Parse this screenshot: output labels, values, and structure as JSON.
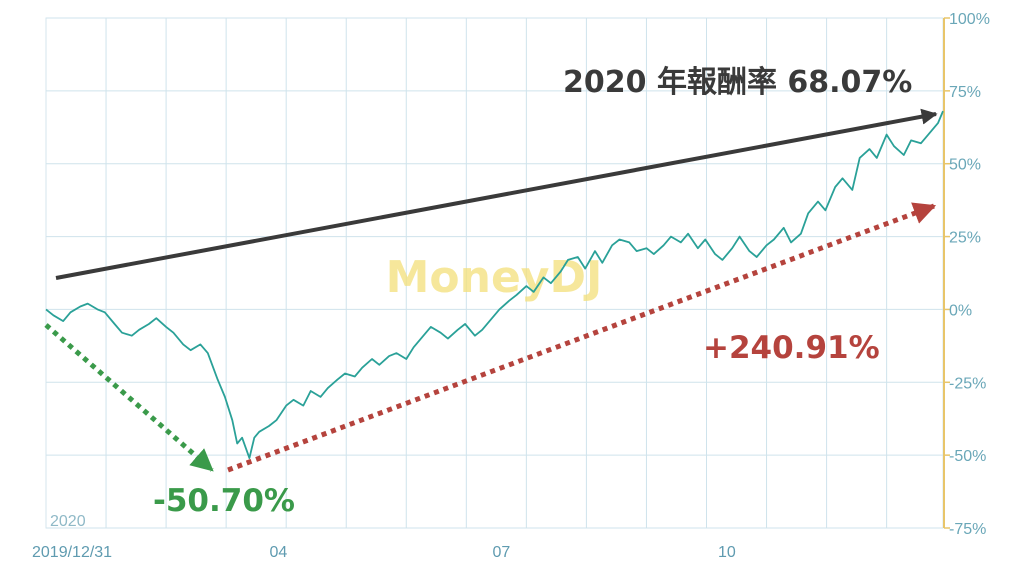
{
  "chart_data": {
    "type": "line",
    "title": "2020 年報酬率 68.07%",
    "watermark": "MoneyDJ",
    "year_label": "2020",
    "x_tick_labels": [
      "2019/12/31",
      "04",
      "07",
      "10"
    ],
    "x_tick_dates": [
      "2019-12-31",
      "2020-04-01",
      "2020-07-01",
      "2020-10-01"
    ],
    "x_range": [
      "2019-12-31",
      "2020-12-31"
    ],
    "y_ticks": [
      100,
      75,
      50,
      25,
      0,
      -25,
      -50,
      -75
    ],
    "y_tick_labels": [
      "100%",
      "75%",
      "50%",
      "25%",
      "0%",
      "-25%",
      "-50%",
      "-75%"
    ],
    "ylim": [
      -75,
      100
    ],
    "y_unit": "%",
    "grid": true,
    "series": [
      {
        "color": "#2aa198",
        "x": [
          "2019-12-31",
          "2020-01-03",
          "2020-01-07",
          "2020-01-10",
          "2020-01-14",
          "2020-01-17",
          "2020-01-21",
          "2020-01-24",
          "2020-01-28",
          "2020-01-31",
          "2020-02-04",
          "2020-02-07",
          "2020-02-11",
          "2020-02-14",
          "2020-02-18",
          "2020-02-21",
          "2020-02-25",
          "2020-02-28",
          "2020-03-03",
          "2020-03-06",
          "2020-03-10",
          "2020-03-13",
          "2020-03-16",
          "2020-03-18",
          "2020-03-20",
          "2020-03-23",
          "2020-03-25",
          "2020-03-27",
          "2020-03-31",
          "2020-04-03",
          "2020-04-07",
          "2020-04-10",
          "2020-04-14",
          "2020-04-17",
          "2020-04-21",
          "2020-04-24",
          "2020-04-28",
          "2020-05-01",
          "2020-05-05",
          "2020-05-08",
          "2020-05-12",
          "2020-05-15",
          "2020-05-19",
          "2020-05-22",
          "2020-05-26",
          "2020-05-29",
          "2020-06-02",
          "2020-06-05",
          "2020-06-09",
          "2020-06-12",
          "2020-06-16",
          "2020-06-19",
          "2020-06-23",
          "2020-06-26",
          "2020-06-30",
          "2020-07-03",
          "2020-07-07",
          "2020-07-10",
          "2020-07-14",
          "2020-07-17",
          "2020-07-21",
          "2020-07-24",
          "2020-07-28",
          "2020-07-31",
          "2020-08-04",
          "2020-08-07",
          "2020-08-11",
          "2020-08-14",
          "2020-08-18",
          "2020-08-21",
          "2020-08-25",
          "2020-08-28",
          "2020-09-01",
          "2020-09-04",
          "2020-09-08",
          "2020-09-11",
          "2020-09-15",
          "2020-09-18",
          "2020-09-22",
          "2020-09-25",
          "2020-09-29",
          "2020-10-02",
          "2020-10-06",
          "2020-10-09",
          "2020-10-13",
          "2020-10-16",
          "2020-10-20",
          "2020-10-23",
          "2020-10-27",
          "2020-10-30",
          "2020-11-03",
          "2020-11-06",
          "2020-11-10",
          "2020-11-13",
          "2020-11-17",
          "2020-11-20",
          "2020-11-24",
          "2020-11-27",
          "2020-12-01",
          "2020-12-04",
          "2020-12-08",
          "2020-12-11",
          "2020-12-15",
          "2020-12-18",
          "2020-12-22",
          "2020-12-25",
          "2020-12-29",
          "2020-12-31"
        ],
        "y": [
          0,
          -2,
          -4,
          -1,
          1,
          2,
          0,
          -1,
          -5,
          -8,
          -9,
          -7,
          -5,
          -3,
          -6,
          -8,
          -12,
          -14,
          -12,
          -15,
          -24,
          -30,
          -38,
          -46,
          -44,
          -51,
          -44,
          -42,
          -40,
          -38,
          -33,
          -31,
          -33,
          -28,
          -30,
          -27,
          -24,
          -22,
          -23,
          -20,
          -17,
          -19,
          -16,
          -15,
          -17,
          -13,
          -9,
          -6,
          -8,
          -10,
          -7,
          -5,
          -9,
          -7,
          -3,
          0,
          3,
          5,
          8,
          6,
          11,
          9,
          13,
          17,
          18,
          14,
          20,
          16,
          22,
          24,
          23,
          20,
          21,
          19,
          22,
          25,
          23,
          26,
          21,
          24,
          19,
          17,
          21,
          25,
          20,
          18,
          22,
          24,
          28,
          23,
          26,
          33,
          37,
          34,
          42,
          45,
          41,
          52,
          55,
          52,
          60,
          56,
          53,
          58,
          57,
          60,
          64,
          68.07
        ]
      }
    ],
    "annotations": {
      "total_return_label": "2020 年報酬率 68.07%",
      "drawdown_label": "-50.70%",
      "rebound_label": "+240.91%"
    },
    "colors": {
      "line": "#2aa198",
      "grid": "#cfe3ec",
      "axis_right": "#e8c56a",
      "tick_text": "#6aa7b8",
      "annotation_dark": "#3a3a3a",
      "annotation_green": "#3a9a4a",
      "annotation_red": "#b5433d",
      "watermark": "#f3e07a"
    }
  }
}
